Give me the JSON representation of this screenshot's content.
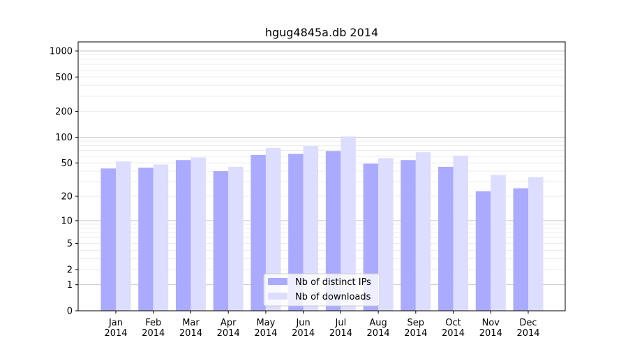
{
  "chart_data": {
    "type": "bar",
    "title": "hgug4845a.db 2014",
    "xlabel": "",
    "ylabel": "",
    "y_scale": "log(1+y)",
    "ylim": [
      0,
      1273
    ],
    "y_ticks": [
      0,
      1,
      2,
      5,
      10,
      20,
      50,
      100,
      200,
      500,
      1000
    ],
    "grid": "horizontal, major and minor",
    "legend_position": "bottom-center",
    "categories": [
      "Jan\n2014",
      "Feb\n2014",
      "Mar\n2014",
      "Apr\n2014",
      "May\n2014",
      "Jun\n2014",
      "Jul\n2014",
      "Aug\n2014",
      "Sep\n2014",
      "Oct\n2014",
      "Nov\n2014",
      "Dec\n2014"
    ],
    "series": [
      {
        "name": "Nb of distinct IPs",
        "color": "#aaaaff",
        "values": [
          43,
          44,
          54,
          40,
          62,
          64,
          69,
          49,
          54,
          45,
          23,
          25
        ]
      },
      {
        "name": "Nb of downloads",
        "color": "#ddddff",
        "values": [
          52,
          48,
          58,
          45,
          75,
          79,
          102,
          57,
          67,
          61,
          36,
          34
        ]
      }
    ]
  }
}
